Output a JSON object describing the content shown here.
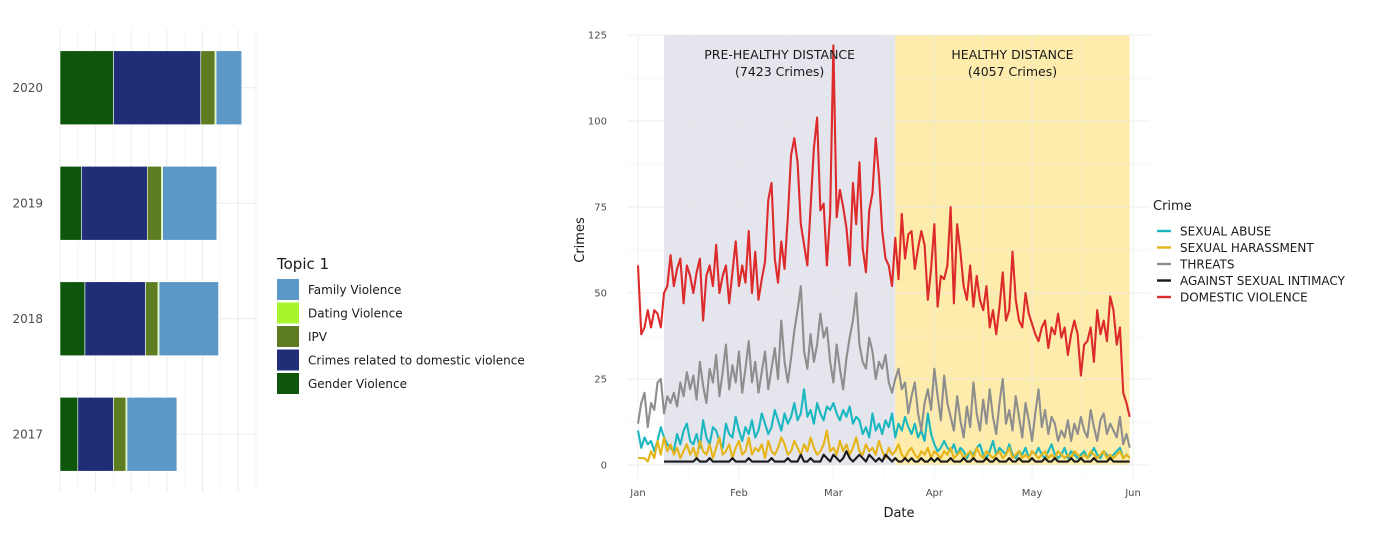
{
  "chart_data": [
    {
      "type": "bar",
      "orientation": "horizontal",
      "stacked": true,
      "categories": [
        "2020",
        "2019",
        "2018",
        "2017"
      ],
      "xlim": [
        0,
        55
      ],
      "grid": true,
      "legend_position": "right",
      "legend_title": "Topic 1",
      "legend": [
        {
          "name": "Family Violence",
          "color": "#5b97c7"
        },
        {
          "name": "Dating Violence",
          "color": "#a6f52d"
        },
        {
          "name": "IPV",
          "color": "#5e7d22"
        },
        {
          "name": "Crimes related to domestic violence",
          "color": "#202e78"
        },
        {
          "name": "Gender Violence",
          "color": "#0e560b"
        }
      ],
      "stack_order": [
        "Gender Violence",
        "Crimes related to domestic violence",
        "IPV",
        "Dating Violence",
        "Family Violence"
      ],
      "series": [
        {
          "name": "Gender Violence",
          "color": "#0e560b",
          "values": [
            15,
            6,
            7,
            5
          ]
        },
        {
          "name": "Crimes related to domestic violence",
          "color": "#202e78",
          "values": [
            24.5,
            18.5,
            17,
            10
          ]
        },
        {
          "name": "IPV",
          "color": "#5e7d22",
          "values": [
            4,
            4,
            3.5,
            3.5
          ]
        },
        {
          "name": "Dating Violence",
          "color": "#a6f52d",
          "values": [
            0.3,
            0.3,
            0.3,
            0.3
          ]
        },
        {
          "name": "Family Violence",
          "color": "#5b97c7",
          "values": [
            7.2,
            15.2,
            16.7,
            14
          ]
        }
      ]
    },
    {
      "type": "line",
      "xlabel": "Date",
      "ylabel": "Crimes",
      "x_axis_type": "date",
      "x_ticks": [
        "Jan",
        "Feb",
        "Mar",
        "Apr",
        "May",
        "Jun"
      ],
      "x_tick_days": [
        0,
        31,
        60,
        91,
        121,
        152
      ],
      "ylim": [
        0,
        125
      ],
      "y_ticks": [
        0,
        25,
        50,
        75,
        100,
        125
      ],
      "grid": true,
      "legend_position": "right",
      "legend_title": "Crime",
      "periods": [
        {
          "label": "PRE-HEALTHY DISTANCE",
          "sub": "(7423 Crimes)",
          "start": "2020-01-09",
          "end": "2020-03-20",
          "color": "#e4e4ec"
        },
        {
          "label": "HEALTHY DISTANCE",
          "sub": "(4057 Crimes)",
          "start": "2020-03-20",
          "end": "2020-05-31",
          "color": "#fdeba8"
        }
      ],
      "series": [
        {
          "name": "SEXUAL ABUSE",
          "color": "#1ab7c0",
          "x_start": "2020-01-01",
          "x_end": "2020-05-31",
          "values": [
            10,
            5,
            8,
            6,
            7,
            4,
            7,
            11,
            8,
            6,
            5,
            4,
            9,
            6,
            10,
            12,
            7,
            6,
            9,
            5,
            13,
            8,
            6,
            11,
            10,
            7,
            5,
            12,
            9,
            8,
            14,
            10,
            7,
            11,
            9,
            13,
            8,
            10,
            15,
            12,
            9,
            11,
            16,
            13,
            10,
            15,
            12,
            14,
            18,
            13,
            15,
            22,
            14,
            16,
            12,
            18,
            15,
            13,
            17,
            16,
            18,
            15,
            13,
            16,
            14,
            17,
            12,
            14,
            13,
            9,
            11,
            8,
            15,
            10,
            12,
            9,
            13,
            11,
            15,
            8,
            12,
            10,
            14,
            11,
            9,
            12,
            8,
            10,
            7,
            15,
            9,
            6,
            4,
            5,
            7,
            5,
            4,
            6,
            3,
            5,
            4,
            2,
            4,
            3,
            5,
            6,
            3,
            2,
            4,
            7,
            3,
            5,
            4,
            3,
            6,
            3,
            2,
            4,
            3,
            5,
            2,
            4,
            3,
            5,
            3,
            2,
            4,
            6,
            3,
            2,
            3,
            5,
            2,
            4,
            3,
            2,
            3,
            4,
            2,
            3,
            5,
            3,
            2,
            4,
            3,
            2,
            3,
            4,
            5,
            2,
            3,
            2
          ]
        },
        {
          "name": "SEXUAL HARASSMENT",
          "color": "#e5b418",
          "x_start": "2020-01-01",
          "x_end": "2020-05-31",
          "values": [
            2,
            2,
            2,
            1,
            4,
            2,
            7,
            3,
            8,
            4,
            6,
            3,
            5,
            2,
            4,
            6,
            3,
            5,
            2,
            7,
            4,
            3,
            6,
            2,
            5,
            8,
            3,
            4,
            6,
            2,
            5,
            7,
            3,
            4,
            8,
            3,
            5,
            4,
            6,
            2,
            7,
            4,
            3,
            5,
            8,
            6,
            3,
            4,
            7,
            5,
            3,
            6,
            4,
            8,
            5,
            3,
            4,
            6,
            10,
            4,
            5,
            3,
            7,
            4,
            6,
            3,
            5,
            8,
            4,
            3,
            6,
            4,
            5,
            3,
            7,
            4,
            2,
            5,
            3,
            4,
            6,
            3,
            2,
            4,
            5,
            3,
            2,
            4,
            3,
            5,
            2,
            4,
            3,
            2,
            4,
            3,
            5,
            2,
            3,
            4,
            2,
            3,
            4,
            2,
            5,
            3,
            2,
            4,
            3,
            2,
            3,
            4,
            2,
            3,
            5,
            2,
            3,
            4,
            2,
            3,
            2,
            4,
            3,
            2,
            3,
            4,
            2,
            3,
            2,
            4,
            3,
            2,
            3,
            2,
            4,
            3,
            2,
            3,
            2,
            4,
            3,
            2,
            3,
            4,
            2,
            3,
            2,
            3,
            4,
            2,
            3,
            2
          ]
        },
        {
          "name": "THREATS",
          "color": "#8e8e8e",
          "x_start": "2020-01-01",
          "x_end": "2020-05-31",
          "values": [
            12,
            18,
            21,
            11,
            18,
            16,
            24,
            25,
            15,
            20,
            18,
            21,
            17,
            24,
            20,
            27,
            22,
            26,
            19,
            30,
            23,
            18,
            28,
            24,
            32,
            20,
            27,
            35,
            22,
            29,
            24,
            33,
            21,
            28,
            36,
            24,
            30,
            21,
            27,
            33,
            22,
            28,
            34,
            25,
            42,
            30,
            24,
            31,
            39,
            45,
            52,
            33,
            28,
            38,
            30,
            35,
            44,
            37,
            40,
            30,
            24,
            35,
            28,
            22,
            31,
            37,
            42,
            50,
            35,
            30,
            28,
            37,
            33,
            25,
            30,
            28,
            32,
            24,
            21,
            25,
            28,
            22,
            24,
            15,
            20,
            24,
            15,
            10,
            18,
            22,
            16,
            28,
            20,
            13,
            26,
            18,
            14,
            10,
            20,
            13,
            8,
            17,
            11,
            24,
            15,
            10,
            19,
            12,
            22,
            14,
            9,
            18,
            25,
            12,
            16,
            10,
            20,
            14,
            8,
            18,
            13,
            7,
            15,
            22,
            11,
            16,
            9,
            14,
            12,
            7,
            10,
            8,
            13,
            7,
            12,
            9,
            14,
            10,
            8,
            16,
            11,
            7,
            13,
            15,
            9,
            12,
            10,
            8,
            14,
            6,
            9,
            5
          ]
        },
        {
          "name": "AGAINST SEXUAL INTIMACY",
          "color": "#1a1a1a",
          "x_start": "2020-01-09",
          "x_end": "2020-05-31",
          "values": [
            1,
            1,
            1,
            1,
            1,
            1,
            1,
            1,
            1,
            1,
            2,
            1,
            1,
            1,
            2,
            1,
            1,
            1,
            1,
            1,
            1,
            2,
            1,
            1,
            1,
            1,
            2,
            1,
            1,
            1,
            1,
            1,
            1,
            2,
            1,
            1,
            1,
            1,
            2,
            1,
            1,
            1,
            3,
            1,
            1,
            2,
            1,
            1,
            1,
            3,
            2,
            1,
            3,
            2,
            1,
            2,
            4,
            2,
            1,
            2,
            3,
            2,
            1,
            3,
            2,
            1,
            2,
            1,
            3,
            2,
            1,
            2,
            1,
            1,
            2,
            1,
            2,
            1,
            1,
            2,
            1,
            1,
            2,
            1,
            2,
            1,
            1,
            1,
            2,
            1,
            1,
            1,
            2,
            1,
            1,
            2,
            1,
            1,
            1,
            2,
            1,
            1,
            2,
            1,
            1,
            1,
            2,
            1,
            1,
            2,
            1,
            1,
            1,
            2,
            1,
            1,
            1,
            2,
            1,
            1,
            2,
            1,
            1,
            1,
            1,
            2,
            1,
            1,
            2,
            1,
            1,
            1,
            2,
            1,
            1,
            1,
            1,
            2,
            1,
            1,
            1,
            1,
            1,
            1
          ]
        },
        {
          "name": "DOMESTIC VIOLENCE",
          "color": "#dd2a2a",
          "x_start": "2020-01-01",
          "x_end": "2020-05-31",
          "values": [
            58,
            38,
            40,
            45,
            40,
            45,
            44,
            40,
            50,
            52,
            61,
            52,
            57,
            60,
            47,
            58,
            55,
            50,
            56,
            60,
            42,
            55,
            58,
            52,
            64,
            50,
            55,
            58,
            47,
            56,
            65,
            52,
            58,
            53,
            68,
            50,
            62,
            48,
            54,
            59,
            77,
            82,
            60,
            53,
            65,
            57,
            72,
            90,
            95,
            88,
            70,
            64,
            58,
            75,
            92,
            101,
            74,
            76,
            58,
            73,
            122,
            72,
            80,
            75,
            69,
            58,
            82,
            70,
            88,
            63,
            56,
            74,
            79,
            95,
            84,
            68,
            60,
            58,
            52,
            66,
            54,
            73,
            60,
            67,
            68,
            57,
            63,
            68,
            64,
            48,
            57,
            70,
            46,
            55,
            54,
            58,
            75,
            47,
            70,
            62,
            52,
            48,
            58,
            46,
            55,
            48,
            45,
            52,
            40,
            45,
            38,
            46,
            56,
            42,
            45,
            62,
            48,
            42,
            40,
            50,
            44,
            41,
            38,
            36,
            40,
            42,
            34,
            40,
            38,
            44,
            37,
            40,
            32,
            38,
            42,
            38,
            26,
            35,
            36,
            40,
            30,
            45,
            38,
            42,
            36,
            49,
            45,
            35,
            40,
            21,
            18,
            14
          ]
        }
      ]
    }
  ]
}
